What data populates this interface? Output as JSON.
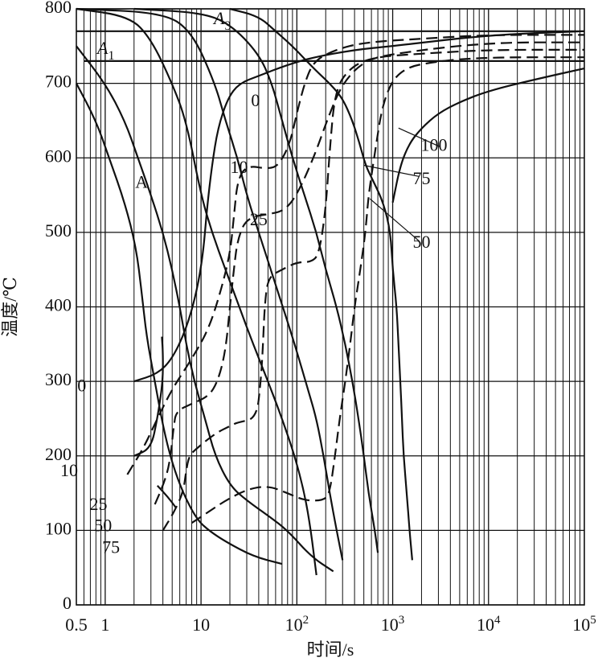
{
  "chart_data": {
    "type": "line",
    "title": "",
    "xlabel": "时间/s",
    "ylabel": "温度/℃",
    "x_scale": "log",
    "xlim": [
      0.5,
      100000
    ],
    "ylim": [
      0,
      800
    ],
    "grid": true,
    "x_ticks": [
      {
        "value": 0.5,
        "label": "0.5"
      },
      {
        "value": 1,
        "label": "1"
      },
      {
        "value": 10,
        "label": "10"
      },
      {
        "value": 100,
        "label": "10",
        "exp": "2"
      },
      {
        "value": 1000,
        "label": "10",
        "exp": "3"
      },
      {
        "value": 10000,
        "label": "10",
        "exp": "4"
      },
      {
        "value": 100000,
        "label": "10",
        "exp": "5"
      }
    ],
    "y_ticks": [
      0,
      100,
      200,
      300,
      400,
      500,
      600,
      700,
      800
    ],
    "reference_lines": [
      {
        "name": "A3",
        "label": "A",
        "sub": "3",
        "y": 770
      },
      {
        "name": "A1",
        "label": "A",
        "sub": "1",
        "y": 730
      }
    ],
    "region_labels": [
      {
        "text": "A",
        "x": 2.4,
        "y": 565
      }
    ],
    "series": [
      {
        "id": "s1",
        "style": "solid",
        "points": [
          [
            0.5,
            700
          ],
          [
            0.8,
            650
          ],
          [
            1.1,
            600
          ],
          [
            1.6,
            540
          ],
          [
            2.1,
            480
          ],
          [
            2.4,
            420
          ],
          [
            2.7,
            360
          ],
          [
            3.3,
            300
          ],
          [
            4.0,
            240
          ],
          [
            5.0,
            190
          ],
          [
            6.5,
            150
          ],
          [
            9.0,
            115
          ],
          [
            12,
            100
          ],
          [
            18,
            85
          ],
          [
            35,
            65
          ],
          [
            70,
            55
          ]
        ]
      },
      {
        "id": "s2",
        "style": "solid",
        "points": [
          [
            0.5,
            750
          ],
          [
            1.0,
            700
          ],
          [
            1.6,
            650
          ],
          [
            2.2,
            600
          ],
          [
            3.0,
            550
          ],
          [
            4.0,
            500
          ],
          [
            5.0,
            450
          ],
          [
            6.0,
            400
          ],
          [
            7.0,
            350
          ],
          [
            8.5,
            300
          ],
          [
            11,
            250
          ],
          [
            14,
            200
          ],
          [
            20,
            160
          ],
          [
            30,
            140
          ],
          [
            50,
            120
          ],
          [
            80,
            100
          ],
          [
            140,
            65
          ],
          [
            240,
            45
          ]
        ]
      },
      {
        "id": "s3",
        "style": "solid",
        "points": [
          [
            0.5,
            800
          ],
          [
            1.8,
            790
          ],
          [
            3.0,
            760
          ],
          [
            5.0,
            700
          ],
          [
            7.0,
            650
          ],
          [
            10,
            550
          ],
          [
            13,
            500
          ],
          [
            18,
            450
          ],
          [
            25,
            400
          ],
          [
            35,
            350
          ],
          [
            50,
            300
          ],
          [
            70,
            250
          ],
          [
            95,
            200
          ],
          [
            120,
            150
          ],
          [
            140,
            100
          ],
          [
            160,
            40
          ]
        ]
      },
      {
        "id": "s4",
        "style": "solid",
        "points": [
          [
            0.5,
            800
          ],
          [
            4.0,
            795
          ],
          [
            8.0,
            770
          ],
          [
            14,
            700
          ],
          [
            18,
            650
          ],
          [
            24,
            600
          ],
          [
            30,
            550
          ],
          [
            40,
            500
          ],
          [
            60,
            430
          ],
          [
            80,
            380
          ],
          [
            100,
            340
          ],
          [
            130,
            290
          ],
          [
            160,
            250
          ],
          [
            190,
            200
          ],
          [
            220,
            150
          ],
          [
            260,
            100
          ],
          [
            300,
            60
          ]
        ]
      },
      {
        "id": "s5",
        "style": "solid",
        "points": [
          [
            2.0,
            800
          ],
          [
            10,
            795
          ],
          [
            20,
            780
          ],
          [
            40,
            740
          ],
          [
            55,
            700
          ],
          [
            70,
            650
          ],
          [
            90,
            600
          ],
          [
            120,
            550
          ],
          [
            160,
            500
          ],
          [
            200,
            450
          ],
          [
            260,
            400
          ],
          [
            320,
            350
          ],
          [
            380,
            300
          ],
          [
            440,
            250
          ],
          [
            500,
            200
          ],
          [
            560,
            150
          ],
          [
            650,
            100
          ],
          [
            700,
            70
          ]
        ]
      },
      {
        "id": "s6",
        "style": "solid",
        "points": [
          [
            20,
            800
          ],
          [
            40,
            790
          ],
          [
            60,
            770
          ],
          [
            90,
            750
          ],
          [
            150,
            720
          ],
          [
            220,
            700
          ],
          [
            300,
            680
          ],
          [
            380,
            650
          ],
          [
            450,
            620
          ],
          [
            520,
            590
          ],
          [
            620,
            570
          ],
          [
            800,
            540
          ],
          [
            950,
            500
          ],
          [
            1000,
            450
          ],
          [
            1100,
            400
          ],
          [
            1150,
            350
          ],
          [
            1200,
            300
          ],
          [
            1250,
            250
          ],
          [
            1300,
            200
          ],
          [
            1400,
            150
          ],
          [
            1500,
            100
          ],
          [
            1600,
            60
          ]
        ]
      },
      {
        "id": "s7",
        "style": "solid",
        "points": [
          [
            2.0,
            300
          ],
          [
            3.5,
            310
          ],
          [
            5.0,
            330
          ],
          [
            7.0,
            370
          ],
          [
            9.0,
            420
          ],
          [
            10.5,
            470
          ],
          [
            11.5,
            530
          ],
          [
            13,
            590
          ],
          [
            15,
            640
          ],
          [
            19,
            680
          ],
          [
            25,
            700
          ],
          [
            40,
            710
          ],
          [
            80,
            725
          ],
          [
            150,
            735
          ],
          [
            400,
            745
          ],
          [
            1000,
            750
          ],
          [
            10000,
            765
          ],
          [
            100000,
            770
          ]
        ]
      },
      {
        "id": "s8",
        "style": "solid",
        "points": [
          [
            1000,
            540
          ],
          [
            1200,
            590
          ],
          [
            1500,
            620
          ],
          [
            2000,
            640
          ],
          [
            3000,
            660
          ],
          [
            5000,
            675
          ],
          [
            10000,
            690
          ],
          [
            30000,
            705
          ],
          [
            100000,
            720
          ]
        ]
      },
      {
        "id": "s9",
        "style": "solid",
        "points": [
          [
            2.0,
            200
          ],
          [
            3.0,
            210
          ],
          [
            3.5,
            250
          ],
          [
            4.0,
            300
          ],
          [
            4.0,
            340
          ],
          [
            3.9,
            360
          ]
        ]
      },
      {
        "id": "s10",
        "style": "solid",
        "points": [
          [
            3.5,
            160
          ],
          [
            4.5,
            145
          ],
          [
            5.5,
            130
          ]
        ]
      },
      {
        "id": "d1",
        "style": "dashed",
        "points": [
          [
            1.7,
            175
          ],
          [
            2.5,
            210
          ],
          [
            3.5,
            250
          ],
          [
            5.0,
            290
          ],
          [
            8.0,
            330
          ],
          [
            12,
            370
          ],
          [
            16,
            420
          ],
          [
            20,
            470
          ],
          [
            22,
            520
          ],
          [
            24,
            570
          ],
          [
            30,
            590
          ],
          [
            50,
            585
          ],
          [
            65,
            590
          ],
          [
            85,
            620
          ],
          [
            100,
            660
          ],
          [
            120,
            700
          ],
          [
            150,
            730
          ],
          [
            250,
            745
          ],
          [
            500,
            755
          ],
          [
            2000,
            760
          ],
          [
            10000,
            765
          ],
          [
            100000,
            765
          ]
        ]
      },
      {
        "id": "d2",
        "style": "dashed",
        "points": [
          [
            3.3,
            135
          ],
          [
            4.0,
            160
          ],
          [
            4.5,
            180
          ],
          [
            4.8,
            200
          ],
          [
            5.0,
            220
          ],
          [
            5.2,
            240
          ],
          [
            5.5,
            260
          ],
          [
            8.0,
            270
          ],
          [
            12,
            280
          ],
          [
            15,
            300
          ],
          [
            18,
            340
          ],
          [
            20,
            400
          ],
          [
            22,
            450
          ],
          [
            24,
            490
          ],
          [
            30,
            520
          ],
          [
            55,
            525
          ],
          [
            75,
            530
          ],
          [
            100,
            550
          ],
          [
            150,
            600
          ],
          [
            220,
            660
          ],
          [
            300,
            700
          ],
          [
            500,
            730
          ],
          [
            1000,
            740
          ],
          [
            10000,
            755
          ],
          [
            100000,
            755
          ]
        ]
      },
      {
        "id": "d3",
        "style": "dashed",
        "points": [
          [
            4.0,
            100
          ],
          [
            5.0,
            120
          ],
          [
            6.5,
            150
          ],
          [
            7.0,
            180
          ],
          [
            7.5,
            200
          ],
          [
            9.0,
            210
          ],
          [
            14,
            230
          ],
          [
            20,
            240
          ],
          [
            24,
            245
          ],
          [
            38,
            250
          ],
          [
            42,
            300
          ],
          [
            44,
            340
          ],
          [
            46,
            400
          ],
          [
            50,
            440
          ],
          [
            70,
            450
          ],
          [
            100,
            460
          ],
          [
            140,
            460
          ],
          [
            170,
            470
          ],
          [
            200,
            530
          ],
          [
            220,
            610
          ],
          [
            250,
            690
          ],
          [
            350,
            720
          ],
          [
            600,
            735
          ],
          [
            2000,
            740
          ],
          [
            10000,
            745
          ],
          [
            100000,
            745
          ]
        ]
      },
      {
        "id": "d4",
        "style": "dashed",
        "points": [
          [
            8.0,
            110
          ],
          [
            12,
            125
          ],
          [
            18,
            140
          ],
          [
            30,
            155
          ],
          [
            50,
            160
          ],
          [
            80,
            150
          ],
          [
            120,
            140
          ],
          [
            190,
            140
          ],
          [
            220,
            150
          ],
          [
            250,
            200
          ],
          [
            280,
            250
          ],
          [
            320,
            300
          ],
          [
            360,
            350
          ],
          [
            400,
            400
          ],
          [
            460,
            450
          ],
          [
            520,
            500
          ],
          [
            560,
            550
          ],
          [
            640,
            600
          ],
          [
            800,
            680
          ],
          [
            1200,
            720
          ],
          [
            3000,
            730
          ],
          [
            10000,
            735
          ],
          [
            100000,
            735
          ]
        ]
      }
    ],
    "curve_labels": [
      {
        "text": "0",
        "x": 37,
        "y": 675
      },
      {
        "text": "10",
        "x": 25,
        "y": 585
      },
      {
        "text": "25",
        "x": 40,
        "y": 515
      },
      {
        "text": "100",
        "x": 2700,
        "y": 615
      },
      {
        "text": "75",
        "x": 2000,
        "y": 570
      },
      {
        "text": "50",
        "x": 2000,
        "y": 485
      },
      {
        "text": "0",
        "x": 0.57,
        "y": 292
      },
      {
        "text": "10",
        "x": 0.42,
        "y": 178
      },
      {
        "text": "25",
        "x": 0.85,
        "y": 133
      },
      {
        "text": "50",
        "x": 0.95,
        "y": 104
      },
      {
        "text": "75",
        "x": 1.15,
        "y": 75
      }
    ],
    "leaders": [
      {
        "from": [
          3100,
          615
        ],
        "to": [
          1150,
          640
        ]
      },
      {
        "from": [
          1900,
          575
        ],
        "to": [
          500,
          590
        ]
      },
      {
        "from": [
          1900,
          488
        ],
        "to": [
          580,
          545
        ]
      }
    ]
  }
}
